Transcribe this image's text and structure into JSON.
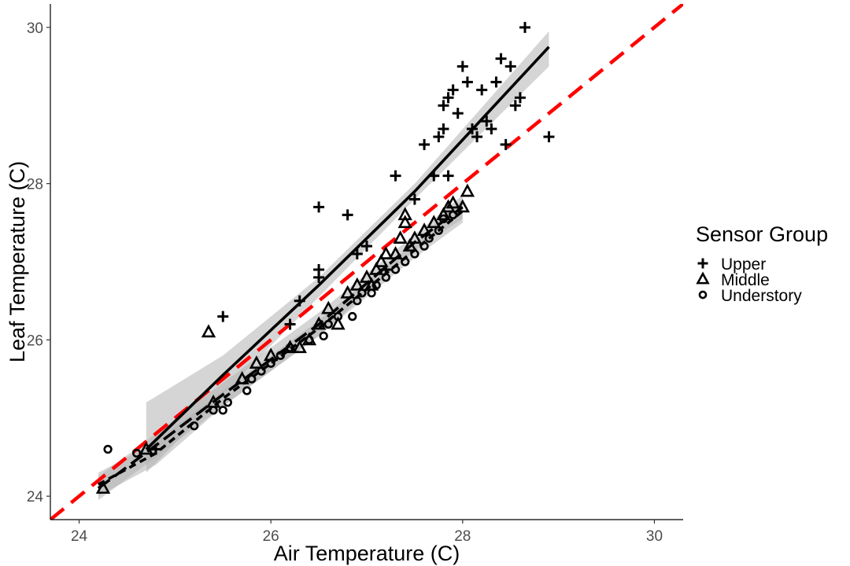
{
  "chart_data": {
    "type": "scatter",
    "title": "",
    "xlabel": "Air Temperature (C)",
    "ylabel": "Leaf Temperature (C)",
    "xlim": [
      23.7,
      30.3
    ],
    "ylim": [
      23.7,
      30.3
    ],
    "xticks": [
      24,
      26,
      28,
      30
    ],
    "yticks": [
      24,
      26,
      28,
      30
    ],
    "grid": false,
    "legend": {
      "title": "Sensor Group",
      "position": "right"
    },
    "reference_line": {
      "slope": 1,
      "intercept": 0,
      "style": "dashed",
      "color": "#ff0000"
    },
    "series": [
      {
        "name": "Upper",
        "marker": "plus",
        "fit_line_style": "solid",
        "points": [
          [
            24.8,
            24.6
          ],
          [
            25.5,
            26.3
          ],
          [
            26.2,
            26.2
          ],
          [
            26.3,
            26.5
          ],
          [
            26.5,
            26.9
          ],
          [
            26.5,
            26.8
          ],
          [
            26.5,
            27.7
          ],
          [
            26.8,
            27.6
          ],
          [
            26.9,
            27.1
          ],
          [
            27.0,
            27.2
          ],
          [
            27.2,
            26.9
          ],
          [
            27.3,
            28.1
          ],
          [
            27.5,
            27.8
          ],
          [
            27.6,
            28.5
          ],
          [
            27.7,
            28.1
          ],
          [
            27.75,
            28.6
          ],
          [
            27.8,
            28.7
          ],
          [
            27.8,
            29.0
          ],
          [
            27.85,
            28.1
          ],
          [
            27.85,
            29.1
          ],
          [
            27.9,
            29.2
          ],
          [
            27.95,
            28.9
          ],
          [
            28.0,
            29.5
          ],
          [
            28.05,
            29.3
          ],
          [
            28.1,
            28.7
          ],
          [
            28.15,
            28.6
          ],
          [
            28.2,
            29.2
          ],
          [
            28.25,
            28.8
          ],
          [
            28.3,
            28.7
          ],
          [
            28.35,
            29.3
          ],
          [
            28.4,
            29.6
          ],
          [
            28.45,
            28.5
          ],
          [
            28.5,
            29.5
          ],
          [
            28.55,
            29.0
          ],
          [
            28.6,
            29.1
          ],
          [
            28.65,
            30.0
          ],
          [
            28.9,
            28.6
          ]
        ],
        "fit": {
          "x": [
            24.7,
            25.5,
            26.5,
            27.5,
            28.9
          ],
          "y": [
            24.6,
            25.55,
            26.7,
            27.9,
            29.75
          ]
        },
        "ci_upper": [
          [
            24.7,
            25.2
          ],
          [
            25.5,
            25.8
          ],
          [
            26.5,
            26.8
          ],
          [
            27.5,
            28.0
          ],
          [
            28.9,
            29.95
          ]
        ],
        "ci_lower": [
          [
            24.7,
            24.3
          ],
          [
            25.5,
            25.3
          ],
          [
            26.5,
            26.55
          ],
          [
            27.5,
            27.8
          ],
          [
            28.9,
            29.5
          ]
        ]
      },
      {
        "name": "Middle",
        "marker": "triangle",
        "fit_line_style": "longdash",
        "points": [
          [
            24.25,
            24.1
          ],
          [
            24.7,
            24.6
          ],
          [
            25.35,
            26.1
          ],
          [
            25.4,
            25.2
          ],
          [
            25.7,
            25.5
          ],
          [
            25.85,
            25.7
          ],
          [
            26.0,
            25.8
          ],
          [
            26.2,
            25.9
          ],
          [
            26.3,
            25.9
          ],
          [
            26.4,
            26.0
          ],
          [
            26.5,
            26.2
          ],
          [
            26.6,
            26.4
          ],
          [
            26.7,
            26.2
          ],
          [
            26.8,
            26.6
          ],
          [
            26.9,
            26.7
          ],
          [
            27.0,
            26.8
          ],
          [
            27.05,
            26.7
          ],
          [
            27.1,
            26.9
          ],
          [
            27.15,
            27.0
          ],
          [
            27.2,
            27.1
          ],
          [
            27.3,
            27.1
          ],
          [
            27.35,
            27.3
          ],
          [
            27.4,
            27.5
          ],
          [
            27.4,
            27.6
          ],
          [
            27.45,
            27.2
          ],
          [
            27.5,
            27.3
          ],
          [
            27.6,
            27.4
          ],
          [
            27.7,
            27.5
          ],
          [
            27.8,
            27.6
          ],
          [
            27.85,
            27.7
          ],
          [
            27.9,
            27.75
          ],
          [
            28.0,
            27.7
          ],
          [
            28.05,
            27.9
          ]
        ],
        "fit": {
          "x": [
            24.2,
            24.8,
            25.5,
            26.5,
            27.5,
            28.0
          ],
          "y": [
            24.1,
            24.65,
            25.3,
            26.2,
            27.25,
            27.7
          ]
        },
        "ci_upper": [
          [
            24.2,
            24.25
          ],
          [
            24.8,
            24.8
          ],
          [
            25.5,
            25.45
          ],
          [
            26.5,
            26.35
          ],
          [
            27.5,
            27.35
          ],
          [
            28.0,
            27.85
          ]
        ],
        "ci_lower": [
          [
            24.2,
            23.95
          ],
          [
            24.8,
            24.5
          ],
          [
            25.5,
            25.15
          ],
          [
            26.5,
            26.05
          ],
          [
            27.5,
            27.15
          ],
          [
            28.0,
            27.55
          ]
        ]
      },
      {
        "name": "Understory",
        "marker": "circle",
        "fit_line_style": "dashed",
        "points": [
          [
            24.3,
            24.6
          ],
          [
            24.6,
            24.55
          ],
          [
            25.2,
            24.9
          ],
          [
            25.4,
            25.1
          ],
          [
            25.5,
            25.1
          ],
          [
            25.55,
            25.2
          ],
          [
            25.75,
            25.35
          ],
          [
            25.8,
            25.5
          ],
          [
            25.9,
            25.6
          ],
          [
            26.0,
            25.7
          ],
          [
            26.1,
            25.8
          ],
          [
            26.2,
            25.9
          ],
          [
            26.4,
            26.0
          ],
          [
            26.55,
            26.05
          ],
          [
            26.6,
            26.2
          ],
          [
            26.7,
            26.3
          ],
          [
            26.85,
            26.3
          ],
          [
            26.9,
            26.5
          ],
          [
            26.95,
            26.6
          ],
          [
            27.05,
            26.6
          ],
          [
            27.1,
            26.7
          ],
          [
            27.2,
            26.8
          ],
          [
            27.3,
            26.9
          ],
          [
            27.4,
            27.0
          ],
          [
            27.5,
            27.1
          ],
          [
            27.6,
            27.2
          ],
          [
            27.65,
            27.3
          ],
          [
            27.75,
            27.4
          ],
          [
            27.8,
            27.55
          ],
          [
            27.9,
            27.6
          ]
        ],
        "fit": {
          "x": [
            24.2,
            24.8,
            25.5,
            26.5,
            27.5,
            28.0
          ],
          "y": [
            24.15,
            24.55,
            25.25,
            26.15,
            27.15,
            27.65
          ]
        },
        "ci_upper": [
          [
            24.2,
            24.3
          ],
          [
            24.8,
            24.7
          ],
          [
            25.5,
            25.35
          ],
          [
            26.5,
            26.25
          ],
          [
            27.5,
            27.25
          ],
          [
            28.0,
            27.8
          ]
        ],
        "ci_lower": [
          [
            24.2,
            24.0
          ],
          [
            24.8,
            24.4
          ],
          [
            25.5,
            25.15
          ],
          [
            26.5,
            26.05
          ],
          [
            27.5,
            27.05
          ],
          [
            28.0,
            27.5
          ]
        ]
      }
    ]
  }
}
